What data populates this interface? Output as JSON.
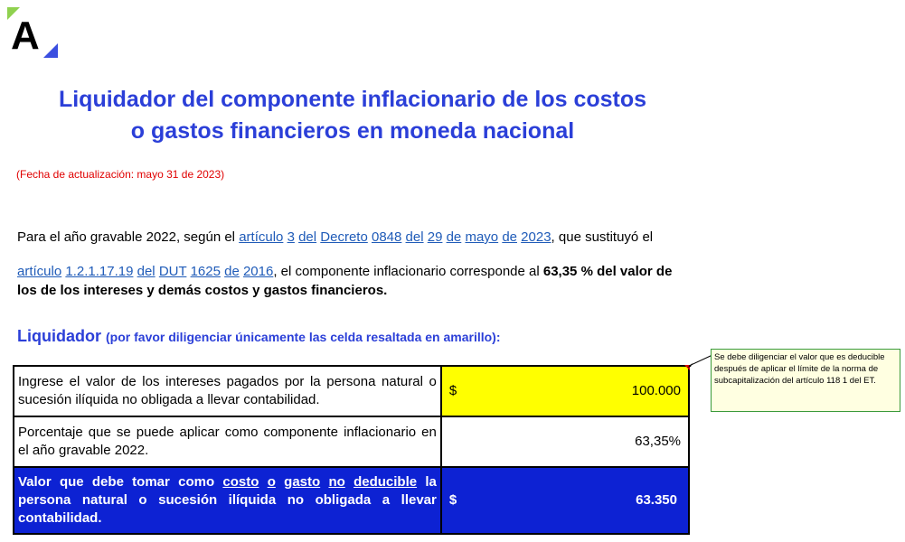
{
  "logo": {
    "letter": "A",
    "colors": {
      "green": "#8fd14f",
      "blue": "#3b4fe0"
    }
  },
  "title": {
    "line1": "Liquidador del componente inflacionario de los costos",
    "line2": "o gastos financieros en moneda nacional"
  },
  "update_date": "(Fecha de actualización: mayo 31 de 2023)",
  "paragraph": {
    "p1_a": "Para el año gravable 2022, según el ",
    "l_articulo": "artículo",
    "l_3": "3",
    "l_del": "del",
    "l_decreto": "Decreto",
    "l_0848": "0848",
    "l_del2": "del",
    "l_29": "29",
    "l_de": "de",
    "l_mayo": "mayo",
    "l_de2": "de",
    "l_2023": "2023",
    "p1_b": ", que sustituyó el",
    "l_articulo2": "artículo",
    "l_num": "1.2.1.17.19",
    "l_del3": "del",
    "l_dut": "DUT",
    "l_1625": "1625",
    "l_de3": "de",
    "l_2016": "2016",
    "p2_a": ", el componente inflacionario corresponde al ",
    "p2_bold": "63,35 % del valor de los de los intereses y demás costos y gastos financieros."
  },
  "liquidador": {
    "title": "Liquidador",
    "subtitle": "(por favor diligenciar únicamente las celda resaltada en amarillo):"
  },
  "table": {
    "row1_label": "Ingrese el valor de los intereses pagados por la persona natural o sucesión ilíquida no obligada a llevar contabilidad.",
    "row1_currency": "$",
    "row1_value": "100.000",
    "row2_label": "Porcentaje que se puede aplicar como componente inflacionario en el año gravable 2022.",
    "row2_value": "63,35%",
    "row3_label_a": "Valor que debe tomar como ",
    "row3_costo": "costo",
    "row3_o": "o",
    "row3_gasto": "gasto",
    "row3_no": "no",
    "row3_deducible": "deducible",
    "row3_label_b": " la persona natural o sucesión ilíquida no obligada a llevar contabilidad.",
    "row3_currency": "$",
    "row3_value": "63.350"
  },
  "comment": "Se debe diligenciar el valor que es deducible después de aplicar el límite de la norma de subcapitalización del artículo 118 1 del ET.",
  "colors": {
    "title_blue": "#2b3fd8",
    "date_red": "#e00000",
    "input_yellow": "#ffff00",
    "result_blue": "#0d22d3",
    "link_blue": "#1f5bb8"
  }
}
